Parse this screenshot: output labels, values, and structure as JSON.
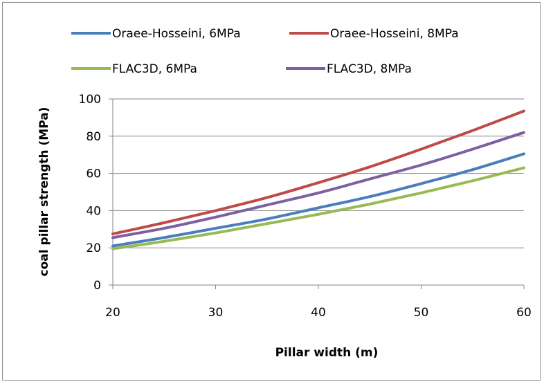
{
  "chart_data": {
    "type": "line",
    "xlabel": "Pillar width (m)",
    "ylabel": "coal pillar strength (MPa)",
    "xlim": [
      20,
      60
    ],
    "ylim": [
      0,
      100
    ],
    "x_ticks": [
      20,
      30,
      40,
      50,
      60
    ],
    "y_ticks": [
      0,
      20,
      40,
      60,
      80,
      100
    ],
    "grid": "horizontal",
    "legend_position": "top",
    "x": [
      20,
      25,
      30,
      35,
      40,
      45,
      50,
      55,
      60
    ],
    "series": [
      {
        "name": "Oraee-Hosseini, 6MPa",
        "color": "#4a7ebb",
        "values": [
          21,
          25.5,
          30.5,
          35.5,
          41.5,
          47.5,
          54.5,
          62,
          70.5
        ]
      },
      {
        "name": "Oraee-Hosseini, 8MPa",
        "color": "#be4b48",
        "values": [
          27.5,
          33.5,
          40,
          47,
          55,
          63.5,
          73,
          83,
          93.5
        ]
      },
      {
        "name": "FLAC3D, 6MPa",
        "color": "#98b954",
        "values": [
          19.5,
          23.5,
          28,
          33,
          38,
          43.5,
          49.5,
          56,
          63
        ]
      },
      {
        "name": "FLAC3D, 8MPa",
        "color": "#7d60a0",
        "values": [
          25.5,
          30.5,
          36.5,
          43,
          49.5,
          57,
          64.5,
          73,
          82
        ]
      }
    ]
  }
}
